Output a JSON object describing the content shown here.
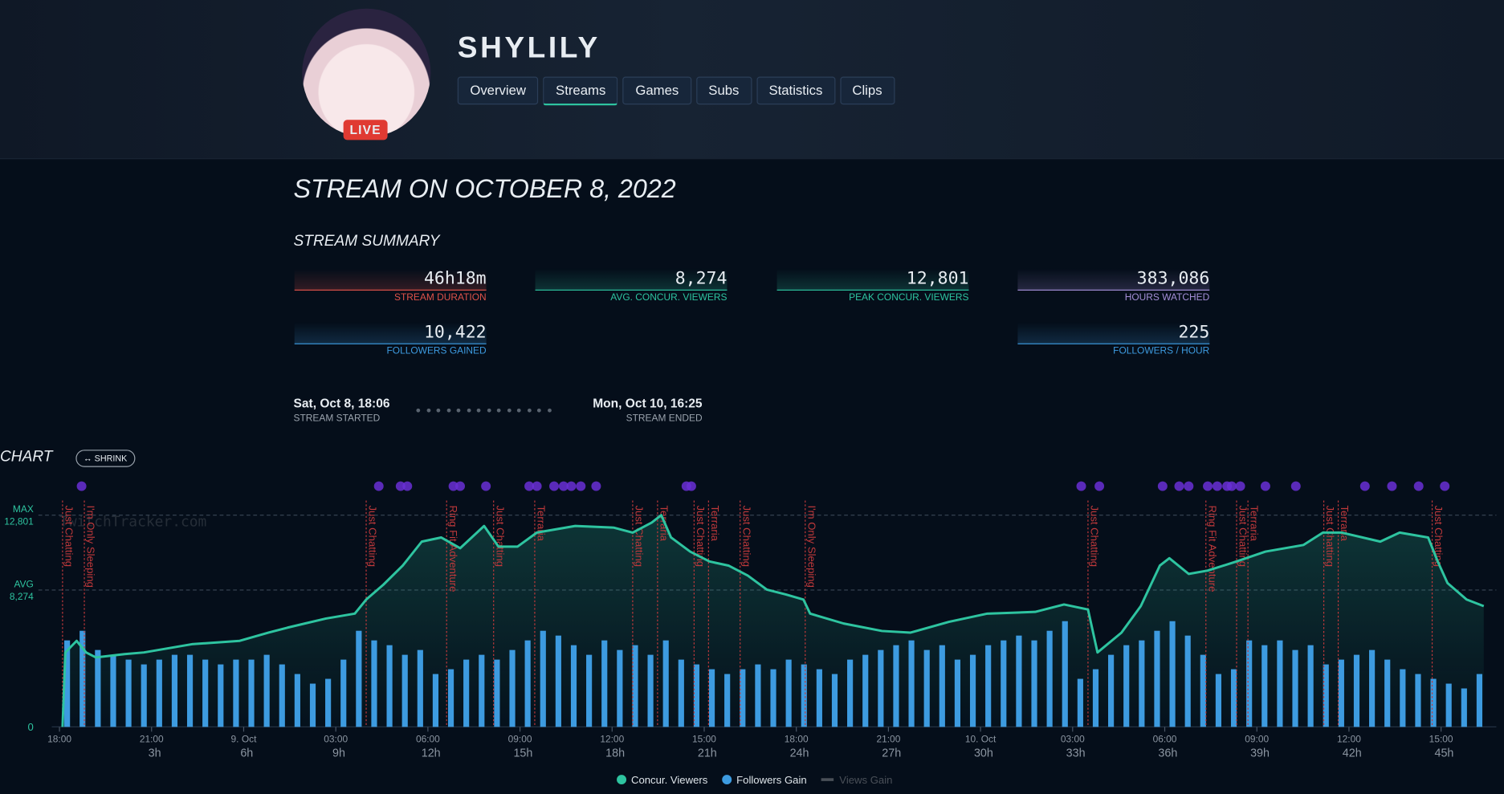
{
  "header": {
    "name": "SHYLILY",
    "live_badge": "LIVE",
    "tabs": [
      "Overview",
      "Streams",
      "Games",
      "Subs",
      "Statistics",
      "Clips"
    ],
    "active_tab": 1
  },
  "page": {
    "title": "STREAM ON OCTOBER 8, 2022",
    "summary_title": "STREAM SUMMARY",
    "chart_label": "CHART",
    "shrink_button": "↔ SHRINK"
  },
  "summary": [
    {
      "value": "46h18m",
      "label": "STREAM DURATION",
      "color": "#e0524a"
    },
    {
      "value": "8,274",
      "label": "AVG. CONCUR. VIEWERS",
      "color": "#2ec4a0"
    },
    {
      "value": "12,801",
      "label": "PEAK CONCUR. VIEWERS",
      "color": "#2ec4a0"
    },
    {
      "value": "383,086",
      "label": "HOURS WATCHED",
      "color": "#a58fd8"
    },
    {
      "value": "10,422",
      "label": "FOLLOWERS GAINED",
      "color": "#3d9be0"
    },
    {
      "value": "225",
      "label": "FOLLOWERS / HOUR",
      "color": "#3d9be0"
    }
  ],
  "timeline": {
    "start": "Sat, Oct 8, 18:06",
    "start_label": "STREAM STARTED",
    "end": "Mon, Oct 10, 16:25",
    "end_label": "STREAM ENDED"
  },
  "chart_data": {
    "type": "line_bar",
    "watermark": "TwitchTracker.com",
    "xlim": [
      0,
      46.8
    ],
    "ylim": [
      0,
      13800
    ],
    "y2lim": [
      0,
      380
    ],
    "yticks": [
      0
    ],
    "reference_lines": [
      {
        "name": "MAX",
        "value": 12801,
        "label": "12,801"
      },
      {
        "name": "AVG",
        "value": 8274,
        "label": "8,274"
      }
    ],
    "xticks": [
      {
        "value": 0,
        "label": "18:00"
      },
      {
        "value": 3,
        "label": "21:00"
      },
      {
        "value": 6,
        "label": "9. Oct"
      },
      {
        "value": 9,
        "label": "03:00"
      },
      {
        "value": 12,
        "label": "06:00"
      },
      {
        "value": 15,
        "label": "09:00"
      },
      {
        "value": 18,
        "label": "12:00"
      },
      {
        "value": 21,
        "label": "15:00"
      },
      {
        "value": 24,
        "label": "18:00"
      },
      {
        "value": 27,
        "label": "21:00"
      },
      {
        "value": 30,
        "label": "10. Oct"
      },
      {
        "value": 33,
        "label": "03:00"
      },
      {
        "value": 36,
        "label": "06:00"
      },
      {
        "value": 39,
        "label": "09:00"
      },
      {
        "value": 42,
        "label": "12:00"
      },
      {
        "value": 45,
        "label": "15:00"
      }
    ],
    "elapsed_ticks": [
      {
        "value": 3.1,
        "label": "3h"
      },
      {
        "value": 6.1,
        "label": "6h"
      },
      {
        "value": 9.1,
        "label": "9h"
      },
      {
        "value": 12.1,
        "label": "12h"
      },
      {
        "value": 15.1,
        "label": "15h"
      },
      {
        "value": 18.1,
        "label": "18h"
      },
      {
        "value": 21.1,
        "label": "21h"
      },
      {
        "value": 24.1,
        "label": "24h"
      },
      {
        "value": 27.1,
        "label": "27h"
      },
      {
        "value": 30.1,
        "label": "30h"
      },
      {
        "value": 33.1,
        "label": "33h"
      },
      {
        "value": 36.1,
        "label": "36h"
      },
      {
        "value": 39.1,
        "label": "39h"
      },
      {
        "value": 42.1,
        "label": "42h"
      },
      {
        "value": 45.1,
        "label": "45h"
      }
    ],
    "series": [
      {
        "name": "Concur. Viewers",
        "color": "#2ec4a0",
        "x": [
          0.1,
          0.19,
          0.56,
          0.87,
          1.19,
          2.12,
          2.75,
          4.31,
          5.87,
          6.81,
          7.43,
          8.68,
          9.62,
          9.99,
          10.55,
          11.18,
          11.8,
          12.43,
          13.05,
          13.83,
          14.3,
          14.92,
          15.55,
          16.8,
          18.05,
          18.67,
          19.29,
          19.6,
          19.92,
          20.54,
          21.17,
          21.79,
          22.42,
          23.04,
          23.67,
          24.23,
          24.45,
          25.54,
          26.79,
          27.72,
          28.97,
          30.22,
          31.78,
          32.72,
          33.5,
          33.81,
          34.59,
          35.22,
          35.84,
          36.15,
          36.78,
          37.4,
          38.34,
          39.28,
          40.52,
          41.15,
          41.77,
          43.02,
          43.65,
          44.58,
          44.89,
          45.21,
          45.83,
          46.39
        ],
        "values": [
          0,
          4500,
          5200,
          4500,
          4200,
          4400,
          4500,
          5000,
          5200,
          5700,
          6000,
          6550,
          6850,
          7700,
          8600,
          9750,
          11200,
          11450,
          10800,
          12150,
          10900,
          10900,
          11750,
          12150,
          12050,
          11750,
          12350,
          12801,
          11450,
          10600,
          10000,
          9750,
          9150,
          8300,
          8000,
          7700,
          6850,
          6250,
          5800,
          5700,
          6350,
          6850,
          6950,
          7400,
          7100,
          4500,
          5700,
          7300,
          9750,
          10200,
          9250,
          9450,
          10000,
          10600,
          11000,
          11750,
          11750,
          11200,
          11750,
          11450,
          10000,
          8700,
          7700,
          7300
        ]
      },
      {
        "name": "Followers Gain",
        "color": "#3d9be0",
        "axis": "y2",
        "x": [
          0.25,
          0.75,
          1.25,
          1.75,
          2.25,
          2.75,
          3.25,
          3.75,
          4.25,
          4.75,
          5.25,
          5.75,
          6.25,
          6.75,
          7.25,
          7.75,
          8.25,
          8.75,
          9.25,
          9.75,
          10.25,
          10.75,
          11.25,
          11.75,
          12.25,
          12.75,
          13.25,
          13.75,
          14.25,
          14.75,
          15.25,
          15.75,
          16.25,
          16.75,
          17.25,
          17.75,
          18.25,
          18.75,
          19.25,
          19.75,
          20.25,
          20.75,
          21.25,
          21.75,
          22.25,
          22.75,
          23.25,
          23.75,
          24.25,
          24.75,
          25.25,
          25.75,
          26.25,
          26.75,
          27.25,
          27.75,
          28.25,
          28.75,
          29.25,
          29.75,
          30.25,
          30.75,
          31.25,
          31.75,
          32.25,
          32.75,
          33.25,
          33.75,
          34.25,
          34.75,
          35.25,
          35.75,
          36.25,
          36.75,
          37.25,
          37.75,
          38.25,
          38.75,
          39.25,
          39.75,
          40.25,
          40.75,
          41.25,
          41.75,
          42.25,
          42.75,
          43.25,
          43.75,
          44.25,
          44.75,
          45.25,
          45.75,
          46.25
        ],
        "values": [
          144,
          160,
          128,
          120,
          112,
          104,
          112,
          120,
          120,
          112,
          104,
          112,
          112,
          120,
          104,
          88,
          72,
          80,
          112,
          160,
          144,
          136,
          120,
          128,
          88,
          96,
          112,
          120,
          112,
          128,
          144,
          160,
          152,
          136,
          120,
          144,
          128,
          136,
          120,
          144,
          112,
          104,
          96,
          88,
          96,
          104,
          96,
          112,
          104,
          96,
          88,
          112,
          120,
          128,
          136,
          144,
          128,
          136,
          112,
          120,
          136,
          144,
          152,
          144,
          160,
          176,
          80,
          96,
          120,
          136,
          144,
          160,
          176,
          152,
          120,
          88,
          96,
          144,
          136,
          144,
          128,
          136,
          104,
          112,
          120,
          128,
          112,
          96,
          88,
          80,
          72,
          64,
          88
        ]
      },
      {
        "name": "Views Gain",
        "color": "#4a5058",
        "hidden": true
      }
    ],
    "annotations": [
      {
        "x": 0.1,
        "label": "Just Chatting"
      },
      {
        "x": 0.81,
        "label": "I'm Only Sleeping"
      },
      {
        "x": 9.99,
        "label": "Just Chatting"
      },
      {
        "x": 12.61,
        "label": "Ring Fit Adventure"
      },
      {
        "x": 14.14,
        "label": "Just Chatting"
      },
      {
        "x": 15.48,
        "label": "Terraria"
      },
      {
        "x": 18.67,
        "label": "Just Chatting"
      },
      {
        "x": 19.48,
        "label": "Terraria"
      },
      {
        "x": 20.67,
        "label": "Just Chatting"
      },
      {
        "x": 21.14,
        "label": "Terraria"
      },
      {
        "x": 22.17,
        "label": "Just Chatting"
      },
      {
        "x": 24.29,
        "label": "I'm Only Sleeping"
      },
      {
        "x": 33.5,
        "label": "Just Chatting"
      },
      {
        "x": 37.34,
        "label": "Ring Fit Adventure"
      },
      {
        "x": 38.34,
        "label": "Just Chatting"
      },
      {
        "x": 38.71,
        "label": "Terraria"
      },
      {
        "x": 41.18,
        "label": "Just Chatting"
      },
      {
        "x": 41.65,
        "label": "Terraria"
      },
      {
        "x": 44.71,
        "label": "Just Chatting"
      }
    ],
    "annotation_color": "#c0393b",
    "event_markers": [
      0.72,
      10.4,
      11.11,
      11.33,
      12.83,
      13.05,
      13.89,
      15.3,
      15.55,
      16.11,
      16.42,
      16.67,
      16.98,
      17.48,
      20.42,
      20.58,
      33.28,
      33.87,
      35.93,
      36.47,
      36.78,
      37.4,
      37.71,
      38.03,
      38.18,
      38.46,
      39.28,
      40.27,
      42.52,
      43.4,
      44.27,
      45.12
    ],
    "event_color": "#6a2fd6"
  }
}
